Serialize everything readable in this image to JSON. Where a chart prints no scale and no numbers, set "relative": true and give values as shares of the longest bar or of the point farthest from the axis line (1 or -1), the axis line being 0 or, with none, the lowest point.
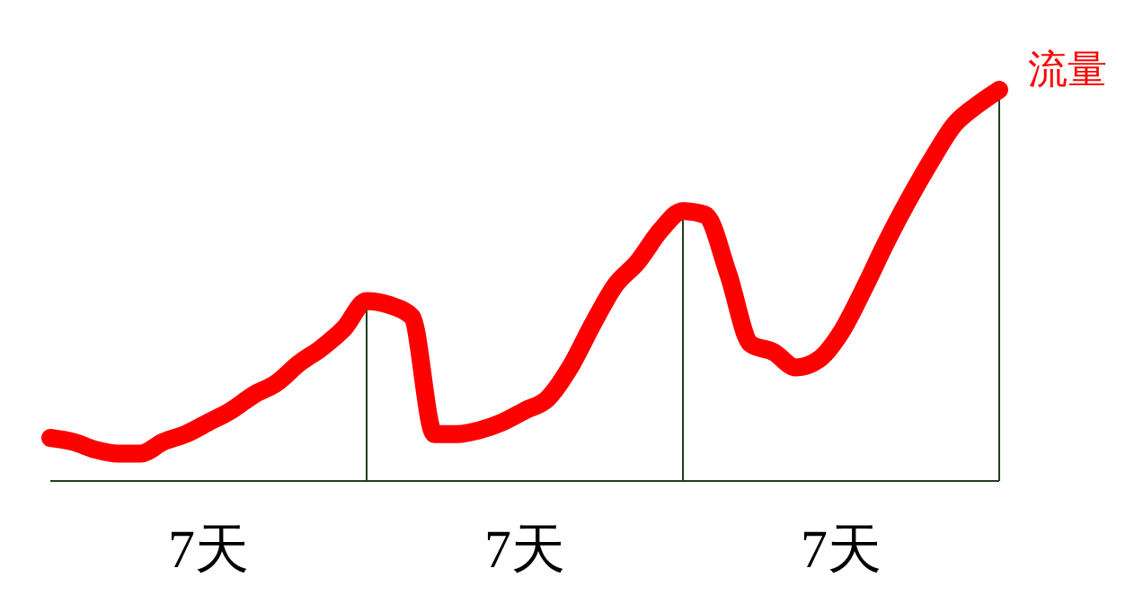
{
  "chart_data": {
    "type": "line",
    "relative": true,
    "categories": [
      null,
      null,
      null,
      null,
      null,
      null,
      null,
      null,
      null,
      null,
      null,
      null,
      null,
      null,
      null,
      null,
      null,
      null,
      null,
      null,
      null,
      null,
      null,
      null,
      null,
      null,
      null,
      null,
      null,
      null,
      null,
      null,
      null,
      null,
      null,
      null,
      null,
      null,
      null,
      null,
      null,
      null,
      null
    ],
    "series": [
      {
        "name": "流量",
        "color": "#ff0000",
        "values": [
          0.11,
          0.1,
          0.08,
          0.07,
          0.07,
          0.1,
          0.12,
          0.15,
          0.18,
          0.22,
          0.25,
          0.3,
          0.34,
          0.39,
          0.46,
          0.45,
          0.42,
          0.12,
          0.12,
          0.13,
          0.15,
          0.18,
          0.21,
          0.29,
          0.4,
          0.5,
          0.56,
          0.64,
          0.69,
          0.68,
          0.53,
          0.35,
          0.33,
          0.29,
          0.31,
          0.38,
          0.49,
          0.61,
          0.72,
          0.82,
          0.91,
          0.96,
          1.0
        ]
      }
    ],
    "annotations": [
      "7天",
      "7天",
      "7天"
    ]
  }
}
